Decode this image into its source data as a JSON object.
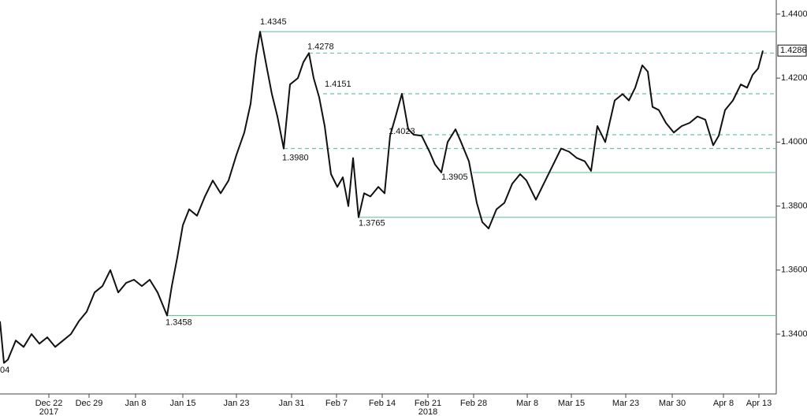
{
  "chart_data": {
    "type": "line",
    "x": [
      0,
      5,
      10,
      20,
      30,
      40,
      50,
      60,
      70,
      80,
      90,
      100,
      110,
      120,
      130,
      140,
      150,
      160,
      170,
      180,
      190,
      200,
      212,
      218,
      225,
      232,
      240,
      250,
      260,
      270,
      280,
      290,
      300,
      310,
      318,
      325,
      330,
      338,
      345,
      352,
      360,
      368,
      378,
      385,
      392,
      398,
      405,
      412,
      420,
      428,
      435,
      442,
      448,
      455,
      462,
      470,
      480,
      488,
      495,
      502,
      510,
      518,
      525,
      535,
      545,
      552,
      560,
      568,
      578,
      585,
      595,
      605,
      612,
      620,
      630,
      640,
      650,
      660,
      668,
      680,
      690,
      700,
      712,
      722,
      732,
      742,
      750,
      758,
      768,
      780,
      790,
      798,
      806,
      815,
      822,
      828,
      836,
      845,
      855,
      865,
      875,
      885,
      895,
      905,
      912,
      920,
      930,
      940,
      948,
      955,
      962,
      968
    ],
    "series": [
      {
        "color": "#111111",
        "values": [
          1.344,
          1.331,
          1.332,
          1.338,
          1.336,
          1.34,
          1.337,
          1.339,
          1.336,
          1.338,
          1.34,
          1.344,
          1.347,
          1.353,
          1.355,
          1.36,
          1.353,
          1.356,
          1.357,
          1.355,
          1.357,
          1.353,
          1.3458,
          1.355,
          1.364,
          1.374,
          1.379,
          1.377,
          1.383,
          1.388,
          1.384,
          1.388,
          1.396,
          1.403,
          1.412,
          1.427,
          1.4345,
          1.424,
          1.415,
          1.408,
          1.398,
          1.418,
          1.42,
          1.425,
          1.4278,
          1.42,
          1.414,
          1.405,
          1.39,
          1.386,
          1.389,
          1.38,
          1.395,
          1.3765,
          1.384,
          1.383,
          1.386,
          1.384,
          1.402,
          1.408,
          1.4151,
          1.404,
          1.4023,
          1.402,
          1.397,
          1.393,
          1.3905,
          1.4,
          1.404,
          1.4,
          1.394,
          1.381,
          1.375,
          1.373,
          1.379,
          1.381,
          1.387,
          1.39,
          1.388,
          1.382,
          1.387,
          1.392,
          1.398,
          1.397,
          1.395,
          1.394,
          1.391,
          1.405,
          1.4,
          1.413,
          1.415,
          1.413,
          1.417,
          1.424,
          1.422,
          1.411,
          1.41,
          1.406,
          1.403,
          1.405,
          1.406,
          1.408,
          1.407,
          1.399,
          1.402,
          1.41,
          1.413,
          1.418,
          1.417,
          1.421,
          1.423,
          1.4286
        ]
      }
    ],
    "xlim": [
      0,
      985
    ],
    "xticks": [
      {
        "value": 62,
        "label": "Dec 22"
      },
      {
        "value": 113,
        "label": "Dec 29"
      },
      {
        "value": 172,
        "label": "Jan 8"
      },
      {
        "value": 232,
        "label": "Jan 15"
      },
      {
        "value": 300,
        "label": "Jan 23"
      },
      {
        "value": 370,
        "label": "Jan 31"
      },
      {
        "value": 427,
        "label": "Feb 7"
      },
      {
        "value": 485,
        "label": "Feb 14"
      },
      {
        "value": 543,
        "label": "Feb 21"
      },
      {
        "value": 601,
        "label": "Feb 28"
      },
      {
        "value": 669,
        "label": "Mar 8"
      },
      {
        "value": 725,
        "label": "Mar 15"
      },
      {
        "value": 794,
        "label": "Mar 23"
      },
      {
        "value": 853,
        "label": "Mar 30"
      },
      {
        "value": 918,
        "label": "Apr 8"
      },
      {
        "value": 963,
        "label": "Apr 13"
      }
    ],
    "year_labels": [
      {
        "value": 62,
        "label": "2017"
      },
      {
        "value": 543,
        "label": "2018"
      }
    ],
    "ylim": [
      1.3213,
      1.4444
    ],
    "yticks": [
      {
        "value": 1.34,
        "label": "1.3400"
      },
      {
        "value": 1.36,
        "label": "1.3600"
      },
      {
        "value": 1.38,
        "label": "1.3800"
      },
      {
        "value": 1.4,
        "label": "1.4000"
      },
      {
        "value": 1.42,
        "label": "1.4200"
      },
      {
        "value": 1.44,
        "label": "1.4400"
      }
    ],
    "levels": {
      "color": "#6cc49a",
      "x": [
        330,
        392,
        410,
        525,
        360,
        600,
        455,
        212
      ],
      "values": [
        1.4345,
        1.4278,
        1.4151,
        1.4023,
        1.398,
        1.3905,
        1.3765,
        1.3458
      ],
      "value_labels": [
        "1.4345",
        "1.4278",
        "1.4151",
        "1.4023",
        "1.3980",
        "1.3905",
        "1.3765",
        "1.3458"
      ],
      "styles": [
        "solid",
        "dashed",
        "dashed",
        "dashed",
        "dashed",
        "solid",
        "solid",
        "solid"
      ]
    },
    "last_price": {
      "value": 1.4286,
      "label": "1.4286"
    },
    "clipped_label": "04"
  }
}
